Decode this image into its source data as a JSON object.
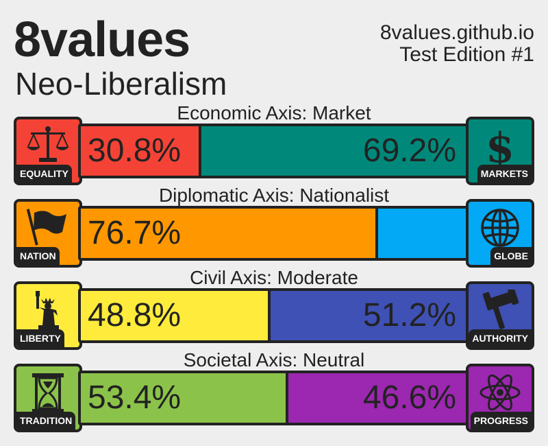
{
  "header": {
    "title": "8values",
    "ideology": "Neo-Liberalism",
    "site": "8values.github.io",
    "edition": "Test Edition #1"
  },
  "axes": [
    {
      "label": "Economic Axis: Market",
      "left": {
        "name": "EQUALITY",
        "icon": "scales-icon",
        "color": "#f44336",
        "value": 30.8,
        "text": "30.8%"
      },
      "right": {
        "name": "MARKETS",
        "icon": "dollar-icon",
        "color": "#00897b",
        "value": 69.2,
        "text": "69.2%"
      }
    },
    {
      "label": "Diplomatic Axis: Nationalist",
      "left": {
        "name": "NATION",
        "icon": "flag-icon",
        "color": "#ff9800",
        "value": 76.7,
        "text": "76.7%"
      },
      "right": {
        "name": "GLOBE",
        "icon": "globe-icon",
        "color": "#03a9f4",
        "value": 23.3,
        "text": ""
      }
    },
    {
      "label": "Civil Axis: Moderate",
      "left": {
        "name": "LIBERTY",
        "icon": "statue-icon",
        "color": "#ffeb3b",
        "value": 48.8,
        "text": "48.8%"
      },
      "right": {
        "name": "AUTHORITY",
        "icon": "gavel-icon",
        "color": "#3f51b5",
        "value": 51.2,
        "text": "51.2%"
      }
    },
    {
      "label": "Societal Axis: Neutral",
      "left": {
        "name": "TRADITION",
        "icon": "hourglass-icon",
        "color": "#8bc34a",
        "value": 53.4,
        "text": "53.4%"
      },
      "right": {
        "name": "PROGRESS",
        "icon": "atom-icon",
        "color": "#9c27b0",
        "value": 46.6,
        "text": "46.6%"
      }
    }
  ]
}
